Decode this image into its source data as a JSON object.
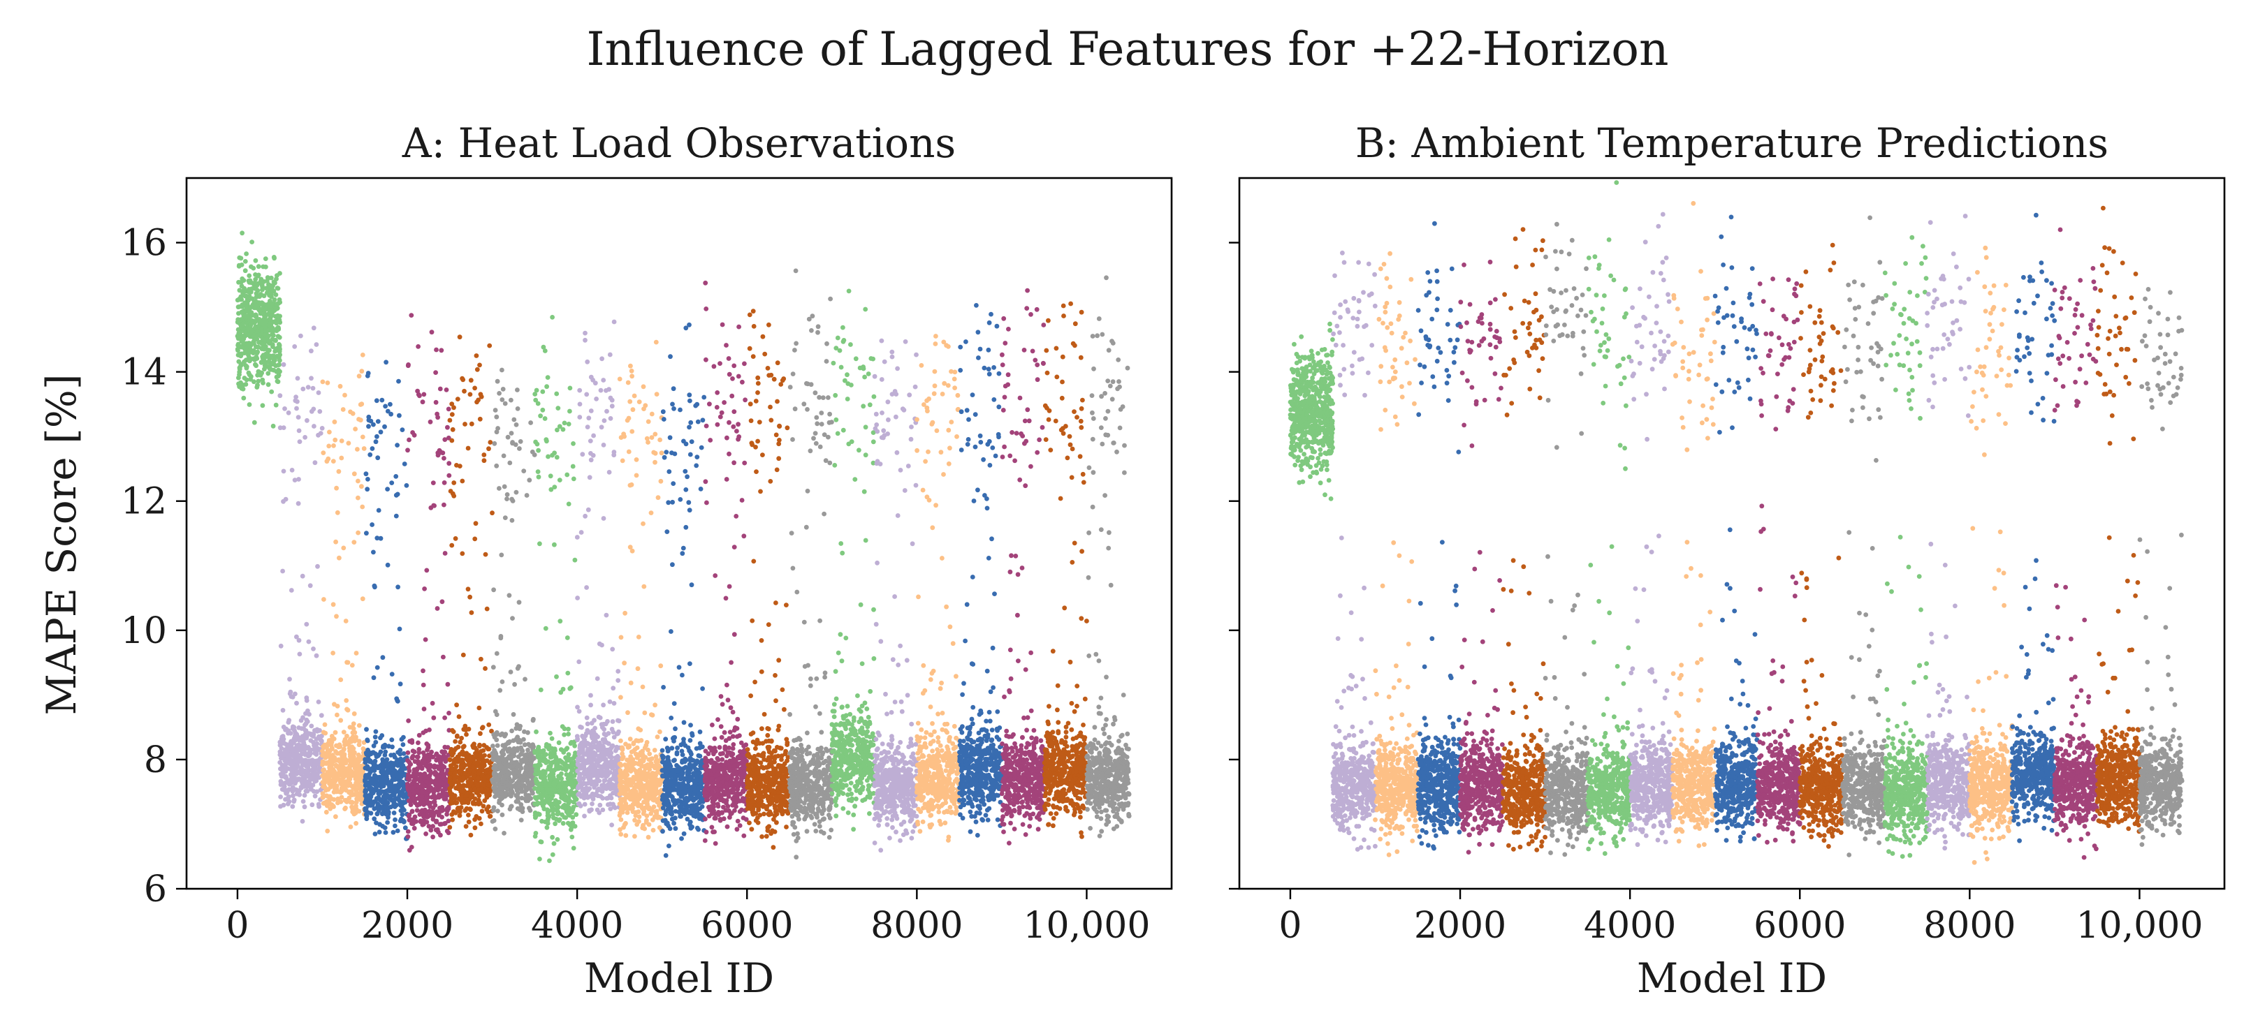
{
  "figure": {
    "title": "Influence of Lagged Features for +22-Horizon",
    "ylabel": "MAPE Score [%]"
  },
  "palette": [
    "#beaed4",
    "#fdc086",
    "#386cb0",
    "#a3437a",
    "#bf5b17",
    "#999999",
    "#7fc97f"
  ],
  "chart_data": [
    {
      "panel": "A",
      "type": "scatter",
      "title": "A: Heat Load Observations",
      "xlabel": "Model ID",
      "ylabel": "MAPE Score [%]",
      "xlim": [
        -600,
        11000
      ],
      "ylim": [
        6,
        17
      ],
      "xticks": [
        0,
        2000,
        4000,
        6000,
        8000,
        10000
      ],
      "xtick_labels": [
        "0",
        "2000",
        "4000",
        "6000",
        "8000",
        "10,000"
      ],
      "yticks": [
        6,
        8,
        10,
        12,
        14,
        16
      ],
      "ytick_labels": [
        "6",
        "8",
        "10",
        "12",
        "14",
        "16"
      ],
      "group_width": 500,
      "first_group": {
        "x_range": [
          0,
          500
        ],
        "color_index": 6,
        "center": 14.7,
        "spread": 0.55,
        "count": 600
      },
      "groups": [
        {
          "x_range": [
            500,
            1000
          ],
          "color_index": 0,
          "high_center": 13.3,
          "low_center": 8.0
        },
        {
          "x_range": [
            1000,
            1500
          ],
          "color_index": 1,
          "high_center": 12.9,
          "low_center": 7.8
        },
        {
          "x_range": [
            1500,
            2000
          ],
          "color_index": 2,
          "high_center": 12.9,
          "low_center": 7.6
        },
        {
          "x_range": [
            2000,
            2500
          ],
          "color_index": 3,
          "high_center": 13.1,
          "low_center": 7.6
        },
        {
          "x_range": [
            2500,
            3000
          ],
          "color_index": 4,
          "high_center": 13.0,
          "low_center": 7.7
        },
        {
          "x_range": [
            3000,
            3500
          ],
          "color_index": 5,
          "high_center": 13.0,
          "low_center": 7.8
        },
        {
          "x_range": [
            3500,
            4000
          ],
          "color_index": 6,
          "high_center": 13.2,
          "low_center": 7.6
        },
        {
          "x_range": [
            4000,
            4500
          ],
          "color_index": 0,
          "high_center": 13.4,
          "low_center": 7.9
        },
        {
          "x_range": [
            4500,
            5000
          ],
          "color_index": 1,
          "high_center": 13.1,
          "low_center": 7.6
        },
        {
          "x_range": [
            5000,
            5500
          ],
          "color_index": 2,
          "high_center": 13.0,
          "low_center": 7.6
        },
        {
          "x_range": [
            5500,
            6000
          ],
          "color_index": 3,
          "high_center": 13.4,
          "low_center": 7.7
        },
        {
          "x_range": [
            6000,
            6500
          ],
          "color_index": 4,
          "high_center": 13.3,
          "low_center": 7.6
        },
        {
          "x_range": [
            6500,
            7000
          ],
          "color_index": 5,
          "high_center": 13.6,
          "low_center": 7.6
        },
        {
          "x_range": [
            7000,
            7500
          ],
          "color_index": 6,
          "high_center": 13.5,
          "low_center": 8.0
        },
        {
          "x_range": [
            7500,
            8000
          ],
          "color_index": 0,
          "high_center": 13.3,
          "low_center": 7.6
        },
        {
          "x_range": [
            8000,
            8500
          ],
          "color_index": 1,
          "high_center": 13.4,
          "low_center": 7.7
        },
        {
          "x_range": [
            8500,
            9000
          ],
          "color_index": 2,
          "high_center": 13.5,
          "low_center": 7.8
        },
        {
          "x_range": [
            9000,
            9500
          ],
          "color_index": 3,
          "high_center": 13.7,
          "low_center": 7.7
        },
        {
          "x_range": [
            9500,
            10000
          ],
          "color_index": 4,
          "high_center": 13.6,
          "low_center": 7.8
        },
        {
          "x_range": [
            10000,
            10500
          ],
          "color_index": 5,
          "high_center": 13.5,
          "low_center": 7.7
        }
      ]
    },
    {
      "panel": "B",
      "type": "scatter",
      "title": "B: Ambient Temperature Predictions",
      "xlabel": "Model ID",
      "ylabel": "",
      "xlim": [
        -600,
        11000
      ],
      "ylim": [
        6,
        17
      ],
      "xticks": [
        0,
        2000,
        4000,
        6000,
        8000,
        10000
      ],
      "xtick_labels": [
        "0",
        "2000",
        "4000",
        "6000",
        "8000",
        "10,000"
      ],
      "yticks": [
        6,
        8,
        10,
        12,
        14,
        16
      ],
      "ytick_labels": [],
      "group_width": 500,
      "first_group": {
        "x_range": [
          0,
          500
        ],
        "color_index": 6,
        "center": 13.4,
        "spread": 0.55,
        "count": 600
      },
      "groups": [
        {
          "x_range": [
            500,
            1000
          ],
          "color_index": 0,
          "high_center": 14.6,
          "low_center": 7.6
        },
        {
          "x_range": [
            1000,
            1500
          ],
          "color_index": 1,
          "high_center": 14.4,
          "low_center": 7.6
        },
        {
          "x_range": [
            1500,
            2000
          ],
          "color_index": 2,
          "high_center": 14.6,
          "low_center": 7.6
        },
        {
          "x_range": [
            2000,
            2500
          ],
          "color_index": 3,
          "high_center": 14.4,
          "low_center": 7.6
        },
        {
          "x_range": [
            2500,
            3000
          ],
          "color_index": 4,
          "high_center": 14.8,
          "low_center": 7.5
        },
        {
          "x_range": [
            3000,
            3500
          ],
          "color_index": 5,
          "high_center": 14.7,
          "low_center": 7.5
        },
        {
          "x_range": [
            3500,
            4000
          ],
          "color_index": 6,
          "high_center": 14.6,
          "low_center": 7.5
        },
        {
          "x_range": [
            4000,
            4500
          ],
          "color_index": 0,
          "high_center": 14.7,
          "low_center": 7.6
        },
        {
          "x_range": [
            4500,
            5000
          ],
          "color_index": 1,
          "high_center": 14.3,
          "low_center": 7.6
        },
        {
          "x_range": [
            5000,
            5500
          ],
          "color_index": 2,
          "high_center": 14.6,
          "low_center": 7.6
        },
        {
          "x_range": [
            5500,
            6000
          ],
          "color_index": 3,
          "high_center": 14.6,
          "low_center": 7.6
        },
        {
          "x_range": [
            6000,
            6500
          ],
          "color_index": 4,
          "high_center": 14.4,
          "low_center": 7.6
        },
        {
          "x_range": [
            6500,
            7000
          ],
          "color_index": 5,
          "high_center": 14.5,
          "low_center": 7.6
        },
        {
          "x_range": [
            7000,
            7500
          ],
          "color_index": 6,
          "high_center": 14.5,
          "low_center": 7.5
        },
        {
          "x_range": [
            7500,
            8000
          ],
          "color_index": 0,
          "high_center": 14.7,
          "low_center": 7.6
        },
        {
          "x_range": [
            8000,
            8500
          ],
          "color_index": 1,
          "high_center": 14.4,
          "low_center": 7.6
        },
        {
          "x_range": [
            8500,
            9000
          ],
          "color_index": 2,
          "high_center": 14.6,
          "low_center": 7.8
        },
        {
          "x_range": [
            9000,
            9500
          ],
          "color_index": 3,
          "high_center": 14.6,
          "low_center": 7.6
        },
        {
          "x_range": [
            9500,
            10000
          ],
          "color_index": 4,
          "high_center": 14.5,
          "low_center": 7.7
        },
        {
          "x_range": [
            10000,
            10500
          ],
          "color_index": 5,
          "high_center": 14.4,
          "low_center": 7.6
        }
      ]
    }
  ]
}
